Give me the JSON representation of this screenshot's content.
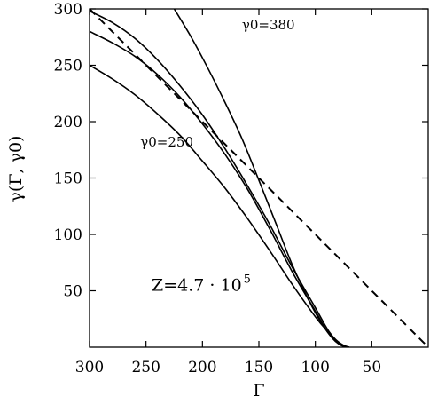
{
  "chart_data": {
    "type": "line",
    "xlabel": "Γ",
    "ylabel": "γ(Γ, γ0)",
    "xlim": [
      300,
      0
    ],
    "ylim": [
      0,
      300
    ],
    "x_reversed": true,
    "grid": false,
    "legend": "none",
    "x_ticks": [
      300,
      250,
      200,
      150,
      100,
      50
    ],
    "y_ticks": [
      50,
      100,
      150,
      200,
      250,
      300
    ],
    "series": [
      {
        "name": "γ0=380",
        "style": "solid",
        "points": [
          [
            225,
            300
          ],
          [
            210,
            275
          ],
          [
            195,
            247
          ],
          [
            180,
            217
          ],
          [
            165,
            185
          ],
          [
            150,
            148
          ],
          [
            135,
            110
          ],
          [
            120,
            72
          ],
          [
            105,
            40
          ],
          [
            95,
            22
          ],
          [
            85,
            8
          ],
          [
            78,
            2
          ],
          [
            72,
            0
          ]
        ]
      },
      {
        "name": "",
        "style": "solid",
        "points": [
          [
            300,
            298
          ],
          [
            280,
            288
          ],
          [
            260,
            274
          ],
          [
            240,
            255
          ],
          [
            220,
            232
          ],
          [
            200,
            206
          ],
          [
            180,
            176
          ],
          [
            160,
            143
          ],
          [
            140,
            108
          ],
          [
            120,
            70
          ],
          [
            100,
            35
          ],
          [
            88,
            14
          ],
          [
            78,
            3
          ],
          [
            70,
            0
          ]
        ]
      },
      {
        "name": "",
        "style": "solid",
        "points": [
          [
            300,
            280
          ],
          [
            280,
            270
          ],
          [
            260,
            258
          ],
          [
            240,
            242
          ],
          [
            220,
            222
          ],
          [
            200,
            198
          ],
          [
            180,
            171
          ],
          [
            160,
            140
          ],
          [
            140,
            104
          ],
          [
            120,
            66
          ],
          [
            100,
            32
          ],
          [
            88,
            12
          ],
          [
            78,
            3
          ],
          [
            70,
            0
          ]
        ]
      },
      {
        "name": "γ0=250",
        "style": "solid",
        "points": [
          [
            300,
            250
          ],
          [
            280,
            238
          ],
          [
            260,
            224
          ],
          [
            240,
            207
          ],
          [
            220,
            188
          ],
          [
            200,
            165
          ],
          [
            180,
            141
          ],
          [
            160,
            114
          ],
          [
            140,
            85
          ],
          [
            120,
            55
          ],
          [
            100,
            27
          ],
          [
            90,
            15
          ],
          [
            80,
            5
          ],
          [
            72,
            0
          ]
        ]
      },
      {
        "name": "",
        "style": "dashed",
        "points": [
          [
            300,
            300
          ],
          [
            0,
            0
          ]
        ]
      }
    ],
    "annotations": [
      {
        "text": "γ0=380",
        "x": 165,
        "y": 282
      },
      {
        "text": "γ0=250",
        "x": 255,
        "y": 178
      },
      {
        "text": "Z=4.7 · 10",
        "superscript": "5",
        "x": 245,
        "y": 50
      }
    ]
  }
}
